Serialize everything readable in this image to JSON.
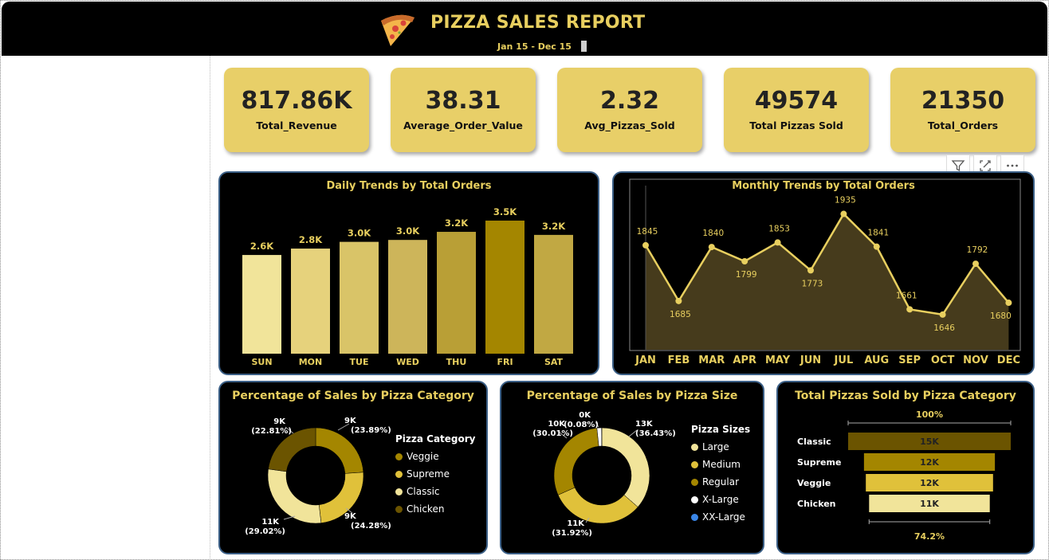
{
  "header": {
    "title": "PIZZA SALES REPORT",
    "date_range": "Jan 15 -  Dec 15"
  },
  "kpis": [
    {
      "value": "817.86K",
      "label": "Total_Revenue"
    },
    {
      "value": "38.31",
      "label": "Average_Order_Value"
    },
    {
      "value": "2.32",
      "label": "Avg_Pizzas_Sold"
    },
    {
      "value": "49574",
      "label": "Total Pizzas Sold"
    },
    {
      "value": "21350",
      "label": "Total_Orders"
    }
  ],
  "toolbar": {
    "filter_icon": "filter-icon",
    "focus_icon": "focus-mode-icon",
    "more_icon": "more-options-icon"
  },
  "chart_data": [
    {
      "type": "bar",
      "title": "Daily Trends by Total Orders",
      "categories": [
        "SUN",
        "MON",
        "TUE",
        "WED",
        "THU",
        "FRI",
        "SAT"
      ],
      "values": [
        2624,
        2794,
        2973,
        3024,
        3239,
        3538,
        3158
      ],
      "data_labels": [
        "2.6K",
        "2.8K",
        "3.0K",
        "3.0K",
        "3.2K",
        "3.5K",
        "3.2K"
      ],
      "colors": [
        "#f1e49a",
        "#e6d27c",
        "#d9c468",
        "#cdb55a",
        "#b99f36",
        "#a48600",
        "#c1a843"
      ],
      "ylim": [
        0,
        3600
      ]
    },
    {
      "type": "area",
      "title": "Monthly Trends by Total Orders",
      "categories": [
        "JAN",
        "FEB",
        "MAR",
        "APR",
        "MAY",
        "JUN",
        "JUL",
        "AUG",
        "SEP",
        "OCT",
        "NOV",
        "DEC"
      ],
      "values": [
        1845,
        1685,
        1840,
        1799,
        1853,
        1773,
        1935,
        1841,
        1661,
        1646,
        1792,
        1680
      ],
      "data_labels": [
        "1845",
        "1685",
        "1840",
        "1799",
        "1853",
        "1773",
        "1935",
        "1841",
        "1661",
        "1646",
        "1792",
        "1680"
      ],
      "ylim": [
        1600,
        1950
      ],
      "color": "#e8cf5f"
    },
    {
      "type": "pie",
      "title": "Percentage of Sales by Pizza Category",
      "legend_title": "Pizza Category",
      "slices": [
        {
          "name": "Veggie",
          "value": 23.89,
          "label": "9K",
          "pct": "(23.89%)",
          "color": "#a48600"
        },
        {
          "name": "Supreme",
          "value": 24.28,
          "label": "9K",
          "pct": "(24.28%)",
          "color": "#e0c13a"
        },
        {
          "name": "Classic",
          "value": 29.02,
          "label": "11K",
          "pct": "(29.02%)",
          "color": "#f1e49a"
        },
        {
          "name": "Chicken",
          "value": 22.81,
          "label": "9K",
          "pct": "(22.81%)",
          "color": "#6b5400"
        }
      ]
    },
    {
      "type": "pie",
      "title": "Percentage of Sales by Pizza Size",
      "legend_title": "Pizza Sizes",
      "slices": [
        {
          "name": "Large",
          "value": 36.43,
          "label": "13K",
          "pct": "(36.43%)",
          "color": "#f1e49a"
        },
        {
          "name": "Medium",
          "value": 31.92,
          "label": "11K",
          "pct": "(31.92%)",
          "color": "#e0c13a"
        },
        {
          "name": "Regular",
          "value": 30.01,
          "label": "10K",
          "pct": "(30.01%)",
          "color": "#a48600"
        },
        {
          "name": "X-Large",
          "value": 1.56,
          "label": "",
          "pct": "",
          "color": "#ffffff"
        },
        {
          "name": "XX-Large",
          "value": 0.08,
          "label": "0K",
          "pct": "(0.08%)",
          "color": "#3a86e8"
        }
      ]
    },
    {
      "type": "bar",
      "title": "Total Pizzas Sold by Pizza Category",
      "top_label": "100%",
      "bottom_label": "74.2%",
      "categories": [
        "Classic",
        "Supreme",
        "Veggie",
        "Chicken"
      ],
      "values": [
        14888,
        11987,
        11649,
        11050
      ],
      "data_labels": [
        "15K",
        "12K",
        "12K",
        "11K"
      ],
      "colors": [
        "#6b5400",
        "#a48600",
        "#e0c13a",
        "#f1e49a"
      ]
    }
  ]
}
